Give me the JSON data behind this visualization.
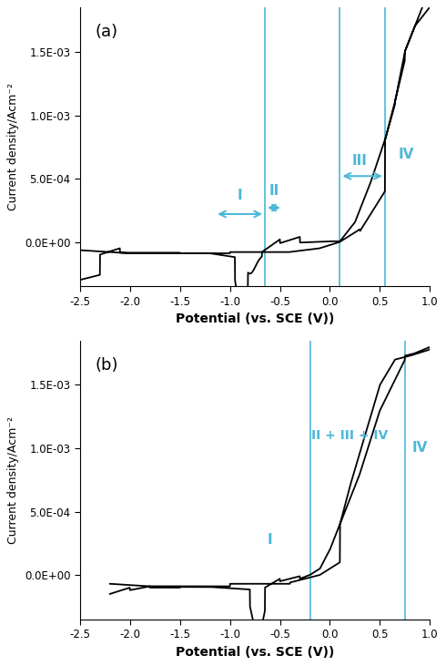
{
  "fig_width": 4.9,
  "fig_height": 7.31,
  "dpi": 100,
  "bg_color": "#ffffff",
  "line_color": "#000000",
  "annotation_color": "#4db8d8",
  "xlabel": "Potential (vs. SCE (V))",
  "ylabel": "Current density/Acm⁻²",
  "xlim": [
    -2.5,
    1.0
  ],
  "ylim_a": [
    -0.00035,
    0.00185
  ],
  "ylim_b": [
    -0.00035,
    0.00185
  ],
  "yticks": [
    0.0,
    0.0005,
    0.001,
    0.0015
  ],
  "ytick_labels": [
    "0.0E+00",
    "5.0E-04",
    "1.0E-03",
    "1.5E-03"
  ],
  "xticks": [
    -2.5,
    -2.0,
    -1.5,
    -1.0,
    -0.5,
    0.0,
    0.5,
    1.0
  ],
  "panel_a_label": "(a)",
  "panel_b_label": "(b)",
  "vlines_a": [
    -0.65,
    0.1,
    0.55
  ],
  "vlines_b": [
    -0.2,
    0.75
  ],
  "ann_color": "#4db8d8"
}
